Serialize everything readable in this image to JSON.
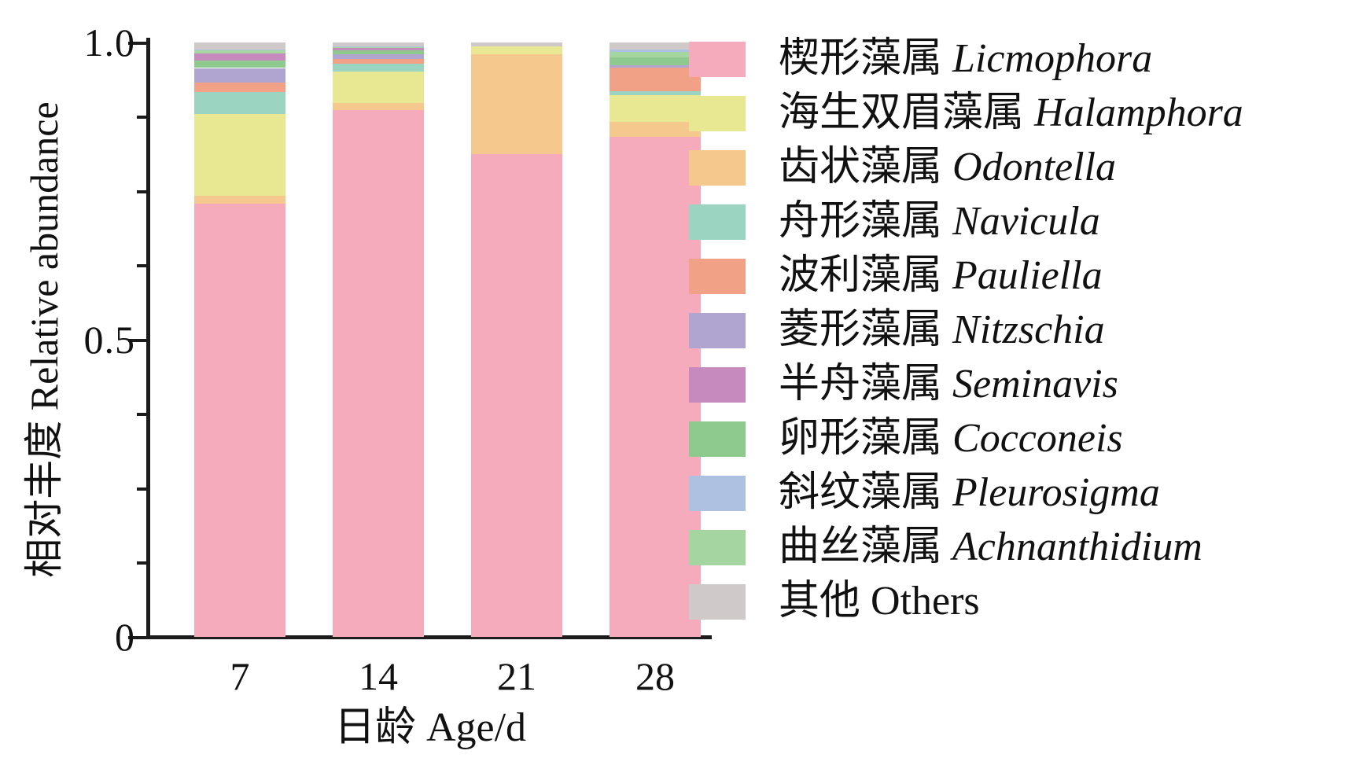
{
  "chart_data": {
    "type": "bar",
    "stacked": true,
    "categories": [
      "7",
      "14",
      "21",
      "28"
    ],
    "xlabel": "日龄 Age/d",
    "ylabel": "相对丰度 Relative abundance",
    "ylim": [
      0,
      1.0
    ],
    "y_major_ticks": [
      {
        "value": 0,
        "label": "0"
      },
      {
        "value": 0.5,
        "label": "0.5"
      },
      {
        "value": 1.0,
        "label": "1.0"
      }
    ],
    "y_minor_tick_interval": 0.125,
    "grid": false,
    "legend_position": "right-outside",
    "series": [
      {
        "name_zh": "楔形藻属",
        "name_latin": "Licmophora",
        "latin_italic": true,
        "color": "#F5ABBB",
        "values": [
          0.729,
          0.886,
          0.812,
          0.841
        ]
      },
      {
        "name_zh": "海生双眉藻属",
        "name_latin": "Halamphora",
        "latin_italic": true,
        "color": "#E8E792",
        "values": [
          0.138,
          0.053,
          0.013,
          0.044
        ]
      },
      {
        "name_zh": "齿状藻属",
        "name_latin": "Odontella",
        "latin_italic": true,
        "color": "#F5C98D",
        "values": [
          0.013,
          0.012,
          0.168,
          0.026
        ]
      },
      {
        "name_zh": "舟形藻属",
        "name_latin": "Navicula",
        "latin_italic": true,
        "color": "#9BD4C0",
        "values": [
          0.037,
          0.013,
          0.0,
          0.007
        ]
      },
      {
        "name_zh": "波利藻属",
        "name_latin": "Pauliella",
        "latin_italic": true,
        "color": "#F1A186",
        "values": [
          0.016,
          0.008,
          0.0,
          0.04
        ]
      },
      {
        "name_zh": "菱形藻属",
        "name_latin": "Nitzschia",
        "latin_italic": true,
        "color": "#AFA5D0",
        "values": [
          0.024,
          0.008,
          0.0,
          0.004
        ]
      },
      {
        "name_zh": "半舟藻属",
        "name_latin": "Seminavis",
        "latin_italic": true,
        "color": "#C78ABF",
        "values": [
          0.012,
          0.004,
          0.0,
          0.0
        ]
      },
      {
        "name_zh": "卵形藻属",
        "name_latin": "Cocconeis",
        "latin_italic": true,
        "color": "#8EC98E",
        "values": [
          0.013,
          0.007,
          0.0,
          0.013
        ]
      },
      {
        "name_zh": "斜纹藻属",
        "name_latin": "Pleurosigma",
        "latin_italic": true,
        "color": "#AFC1E1",
        "values": [
          0.001,
          0.001,
          0.0,
          0.004
        ]
      },
      {
        "name_zh": "曲丝藻属",
        "name_latin": "Achnanthidium",
        "latin_italic": true,
        "color": "#A5D5A0",
        "values": [
          0.005,
          0.002,
          0.0,
          0.009
        ]
      },
      {
        "name_zh": "其他",
        "name_latin": "Others",
        "latin_italic": false,
        "color": "#CFC9C9",
        "values": [
          0.012,
          0.006,
          0.007,
          0.012
        ]
      }
    ],
    "stack_order_bottom_to_top": [
      "Licmophora",
      "Odontella",
      "Halamphora",
      "Navicula",
      "Pauliella",
      "Nitzschia",
      "Cocconeis",
      "Seminavis",
      "Achnanthidium",
      "Pleurosigma",
      "Others"
    ]
  }
}
